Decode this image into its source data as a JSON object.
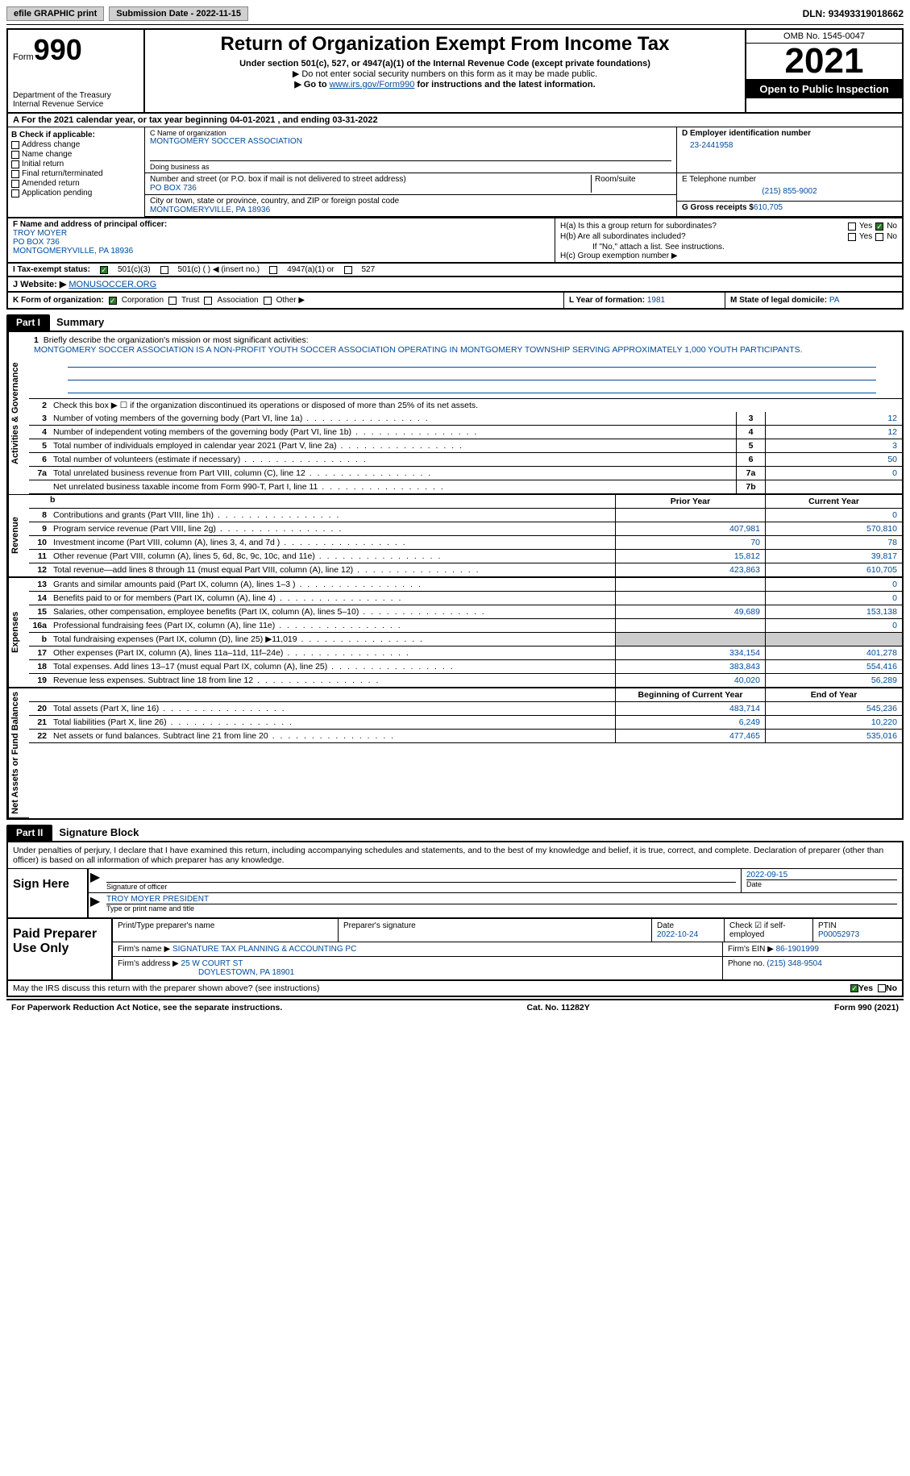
{
  "topbar": {
    "efile": "efile GRAPHIC print",
    "sub_date_lbl": "Submission Date - ",
    "sub_date": "2022-11-15",
    "dln_lbl": "DLN: ",
    "dln": "93493319018662"
  },
  "header": {
    "form_word": "Form",
    "form_num": "990",
    "dept": "Department of the Treasury Internal Revenue Service",
    "title": "Return of Organization Exempt From Income Tax",
    "sub1": "Under section 501(c), 527, or 4947(a)(1) of the Internal Revenue Code (except private foundations)",
    "sub2": "▶ Do not enter social security numbers on this form as it may be made public.",
    "sub3_pre": "▶ Go to ",
    "sub3_link": "www.irs.gov/Form990",
    "sub3_post": " for instructions and the latest information.",
    "omb": "OMB No. 1545-0047",
    "year": "2021",
    "open": "Open to Public Inspection"
  },
  "row_a": "A For the 2021 calendar year, or tax year beginning 04-01-2021   , and ending 03-31-2022",
  "box_b": {
    "title": "B Check if applicable:",
    "o1": "Address change",
    "o2": "Name change",
    "o3": "Initial return",
    "o4": "Final return/terminated",
    "o5": "Amended return",
    "o6": "Application pending"
  },
  "box_c": {
    "name_lbl": "C Name of organization",
    "name": "MONTGOMERY SOCCER ASSOCIATION",
    "dba_lbl": "Doing business as",
    "street_lbl": "Number and street (or P.O. box if mail is not delivered to street address)",
    "street": "PO BOX 736",
    "room_lbl": "Room/suite",
    "city_lbl": "City or town, state or province, country, and ZIP or foreign postal code",
    "city": "MONTGOMERYVILLE, PA  18936"
  },
  "box_d": {
    "lbl": "D Employer identification number",
    "val": "23-2441958"
  },
  "box_e": {
    "lbl": "E Telephone number",
    "val": "(215) 855-9002"
  },
  "box_g": {
    "lbl": "G Gross receipts $",
    "val": "610,705"
  },
  "box_f": {
    "lbl": "F Name and address of principal officer:",
    "l1": "TROY MOYER",
    "l2": "PO BOX 736",
    "l3": "MONTGOMERYVILLE, PA  18936"
  },
  "box_h": {
    "ha": "H(a)  Is this a group return for subordinates?",
    "hb": "H(b)  Are all subordinates included?",
    "hb2": "If \"No,\" attach a list. See instructions.",
    "hc": "H(c)  Group exemption number ▶",
    "yes": "Yes",
    "no": "No"
  },
  "row_i": {
    "lbl": "I  Tax-exempt status:",
    "o1": "501(c)(3)",
    "o2": "501(c) (  ) ◀ (insert no.)",
    "o3": "4947(a)(1) or",
    "o4": "527"
  },
  "row_j": {
    "lbl": "J  Website: ▶ ",
    "val": "MONUSOCCER.ORG"
  },
  "row_k": {
    "lbl": "K Form of organization:",
    "o1": "Corporation",
    "o2": "Trust",
    "o3": "Association",
    "o4": "Other ▶"
  },
  "row_l": {
    "lbl": "L Year of formation: ",
    "val": "1981"
  },
  "row_m": {
    "lbl": "M State of legal domicile: ",
    "val": "PA"
  },
  "part1": {
    "num": "Part I",
    "title": "Summary"
  },
  "vtabs": {
    "ag": "Activities & Governance",
    "rev": "Revenue",
    "exp": "Expenses",
    "na": "Net Assets or Fund Balances"
  },
  "l1": {
    "lbl": "Briefly describe the organization's mission or most significant activities:",
    "txt": "MONTGOMERY SOCCER ASSOCIATION IS A NON-PROFIT YOUTH SOCCER ASSOCIATION OPERATING IN MONTGOMERY TOWNSHIP SERVING APPROXIMATELY 1,000 YOUTH PARTICIPANTS."
  },
  "l2": "Check this box ▶ ☐ if the organization discontinued its operations or disposed of more than 25% of its net assets.",
  "lines_ag": [
    {
      "n": "3",
      "d": "Number of voting members of the governing body (Part VI, line 1a)",
      "bn": "3",
      "v": "12"
    },
    {
      "n": "4",
      "d": "Number of independent voting members of the governing body (Part VI, line 1b)",
      "bn": "4",
      "v": "12"
    },
    {
      "n": "5",
      "d": "Total number of individuals employed in calendar year 2021 (Part V, line 2a)",
      "bn": "5",
      "v": "3"
    },
    {
      "n": "6",
      "d": "Total number of volunteers (estimate if necessary)",
      "bn": "6",
      "v": "50"
    },
    {
      "n": "7a",
      "d": "Total unrelated business revenue from Part VIII, column (C), line 12",
      "bn": "7a",
      "v": "0"
    },
    {
      "n": "",
      "d": "Net unrelated business taxable income from Form 990-T, Part I, line 11",
      "bn": "7b",
      "v": ""
    }
  ],
  "col_hdrs": {
    "py": "Prior Year",
    "cy": "Current Year",
    "boy": "Beginning of Current Year",
    "eoy": "End of Year"
  },
  "lines_rev": [
    {
      "n": "8",
      "d": "Contributions and grants (Part VIII, line 1h)",
      "py": "",
      "cy": "0"
    },
    {
      "n": "9",
      "d": "Program service revenue (Part VIII, line 2g)",
      "py": "407,981",
      "cy": "570,810"
    },
    {
      "n": "10",
      "d": "Investment income (Part VIII, column (A), lines 3, 4, and 7d )",
      "py": "70",
      "cy": "78"
    },
    {
      "n": "11",
      "d": "Other revenue (Part VIII, column (A), lines 5, 6d, 8c, 9c, 10c, and 11e)",
      "py": "15,812",
      "cy": "39,817"
    },
    {
      "n": "12",
      "d": "Total revenue—add lines 8 through 11 (must equal Part VIII, column (A), line 12)",
      "py": "423,863",
      "cy": "610,705"
    }
  ],
  "lines_exp": [
    {
      "n": "13",
      "d": "Grants and similar amounts paid (Part IX, column (A), lines 1–3 )",
      "py": "",
      "cy": "0"
    },
    {
      "n": "14",
      "d": "Benefits paid to or for members (Part IX, column (A), line 4)",
      "py": "",
      "cy": "0"
    },
    {
      "n": "15",
      "d": "Salaries, other compensation, employee benefits (Part IX, column (A), lines 5–10)",
      "py": "49,689",
      "cy": "153,138"
    },
    {
      "n": "16a",
      "d": "Professional fundraising fees (Part IX, column (A), line 11e)",
      "py": "",
      "cy": "0"
    },
    {
      "n": "b",
      "d": "Total fundraising expenses (Part IX, column (D), line 25) ▶11,019",
      "py": "GREY",
      "cy": "GREY"
    },
    {
      "n": "17",
      "d": "Other expenses (Part IX, column (A), lines 11a–11d, 11f–24e)",
      "py": "334,154",
      "cy": "401,278"
    },
    {
      "n": "18",
      "d": "Total expenses. Add lines 13–17 (must equal Part IX, column (A), line 25)",
      "py": "383,843",
      "cy": "554,416"
    },
    {
      "n": "19",
      "d": "Revenue less expenses. Subtract line 18 from line 12",
      "py": "40,020",
      "cy": "56,289"
    }
  ],
  "lines_na": [
    {
      "n": "20",
      "d": "Total assets (Part X, line 16)",
      "py": "483,714",
      "cy": "545,236"
    },
    {
      "n": "21",
      "d": "Total liabilities (Part X, line 26)",
      "py": "6,249",
      "cy": "10,220"
    },
    {
      "n": "22",
      "d": "Net assets or fund balances. Subtract line 21 from line 20",
      "py": "477,465",
      "cy": "535,016"
    }
  ],
  "part2": {
    "num": "Part II",
    "title": "Signature Block"
  },
  "penalties": "Under penalties of perjury, I declare that I have examined this return, including accompanying schedules and statements, and to the best of my knowledge and belief, it is true, correct, and complete. Declaration of preparer (other than officer) is based on all information of which preparer has any knowledge.",
  "sign": {
    "here": "Sign Here",
    "sig_lbl": "Signature of officer",
    "date_lbl": "Date",
    "date": "2022-09-15",
    "name": "TROY MOYER  PRESIDENT",
    "name_lbl": "Type or print name and title"
  },
  "prep": {
    "title": "Paid Preparer Use Only",
    "pn_lbl": "Print/Type preparer's name",
    "ps_lbl": "Preparer's signature",
    "pd_lbl": "Date",
    "pd": "2022-10-24",
    "ck_lbl": "Check ☑ if self-employed",
    "ptin_lbl": "PTIN",
    "ptin": "P00052973",
    "firm_lbl": "Firm's name    ▶",
    "firm": "SIGNATURE TAX PLANNING & ACCOUNTING PC",
    "ein_lbl": "Firm's EIN ▶",
    "ein": "86-1901999",
    "addr_lbl": "Firm's address ▶",
    "addr1": "25 W COURT ST",
    "addr2": "DOYLESTOWN, PA  18901",
    "ph_lbl": "Phone no. ",
    "ph": "(215) 348-9504"
  },
  "may_irs": "May the IRS discuss this return with the preparer shown above? (see instructions)",
  "footer": {
    "l": "For Paperwork Reduction Act Notice, see the separate instructions.",
    "m": "Cat. No. 11282Y",
    "r": "Form 990 (2021)"
  }
}
